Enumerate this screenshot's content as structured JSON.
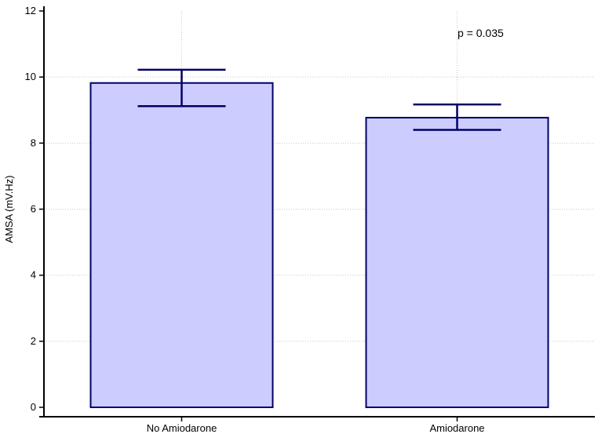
{
  "chart_data": {
    "type": "bar",
    "title": "",
    "xlabel": "",
    "ylabel": "AMSA (mV.Hz)",
    "categories": [
      "No Amiodarone",
      "Amiodarone"
    ],
    "values": [
      9.82,
      8.77
    ],
    "error_lower": [
      9.12,
      8.4
    ],
    "error_upper": [
      10.22,
      9.17
    ],
    "ylim": [
      0,
      12
    ],
    "yticks": [
      "0",
      "2",
      "4",
      "6",
      "8",
      "10",
      "12"
    ],
    "grid": true,
    "bar_fill": "#ccccff",
    "bar_stroke": "#000066",
    "annotation": "p = 0.035"
  }
}
